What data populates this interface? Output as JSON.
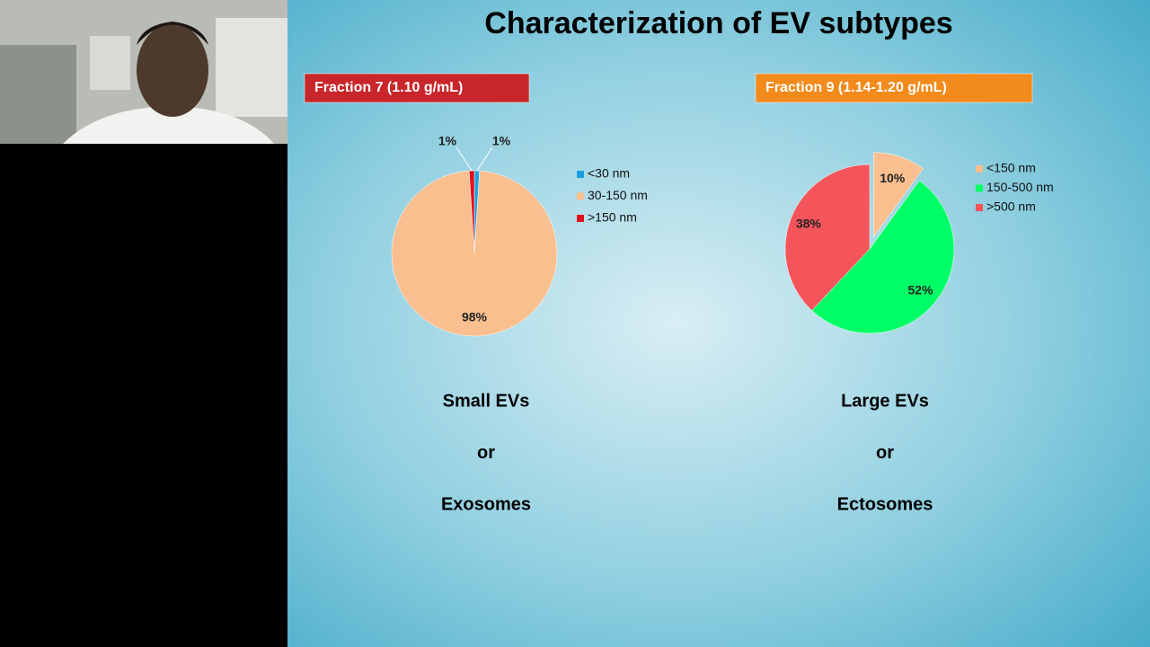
{
  "slide": {
    "title": "Characterization of EV subtypes"
  },
  "chart_data": [
    {
      "type": "pie",
      "title": "Fraction 7 (1.10 g/mL)",
      "categories": [
        "<30 nm",
        "30-150 nm",
        ">150 nm"
      ],
      "values": [
        1,
        98,
        1
      ],
      "value_labels": [
        "1%",
        "98%",
        "1%"
      ],
      "colors": [
        "#1ba1e2",
        "#f9bf8f",
        "#e0101a"
      ],
      "exploded": [
        false,
        false,
        false
      ],
      "header_color": "#c8262b"
    },
    {
      "type": "pie",
      "title": "Fraction 9 (1.14-1.20 g/mL)",
      "categories": [
        "<150 nm",
        "150-500 nm",
        ">500 nm"
      ],
      "values": [
        10,
        52,
        38
      ],
      "value_labels": [
        "10%",
        "52%",
        "38%"
      ],
      "colors": [
        "#f9bf8f",
        "#00ff66",
        "#f4555a"
      ],
      "exploded": [
        true,
        false,
        false
      ],
      "header_color": "#f28a1c"
    }
  ],
  "captions": [
    [
      "Small EVs",
      "or",
      "Exosomes"
    ],
    [
      "Large EVs",
      "or",
      "Ectosomes"
    ]
  ]
}
